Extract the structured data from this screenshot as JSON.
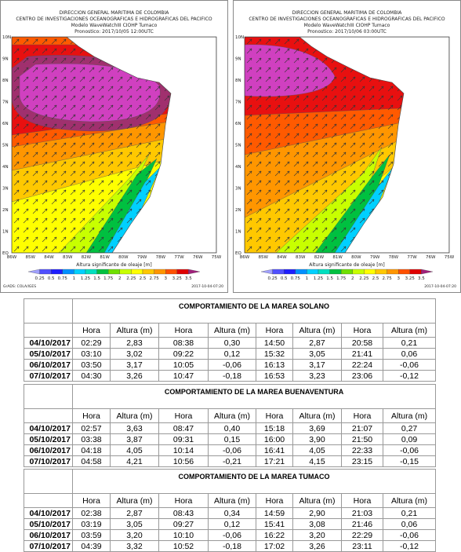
{
  "maps": [
    {
      "title_lines": [
        "DIRECCION GENERAL MARITIMA DE COLOMBIA",
        "CENTRO DE INVESTIGACIONES OCEANOGRAFICAS E HIDROGRAFICAS DEL PACIFICO",
        "Modelo WaveWatchIII CIOHP Tumaco",
        "Pronostico: 2017/10/05 12:00UTC"
      ],
      "footer_left": "GrADS: COLA/IGES",
      "footer_right": "2017-10-04-07:20"
    },
    {
      "title_lines": [
        "DIRECCION GENERAL MARITIMA DE COLOMBIA",
        "CENTRO DE INVESTIGACIONES OCEANOGRAFICAS E HIDROGRAFICAS DEL PACIFICO",
        "Modelo WaveWatchIII CIOHP Tumaco",
        "Pronostico: 2017/10/06 03:00UTC"
      ],
      "footer_right": "2017-10-04-07:20"
    }
  ],
  "map_axis": {
    "lat_labels": [
      "10N",
      "9N",
      "8N",
      "7N",
      "6N",
      "5N",
      "4N",
      "3N",
      "2N",
      "1N",
      "EQ"
    ],
    "lon_labels": [
      "86W",
      "85W",
      "84W",
      "83W",
      "82W",
      "81W",
      "80W",
      "79W",
      "78W",
      "77W",
      "76W",
      "75W"
    ]
  },
  "colorbar": {
    "title": "Altura significante de oleaje [m]",
    "labels": [
      "0.25",
      "0.5",
      "0.75",
      "1",
      "1.25",
      "1.5",
      "1.75",
      "2",
      "2.25",
      "2.5",
      "2.75",
      "3",
      "3.25",
      "3.5"
    ]
  },
  "tables": [
    {
      "title": "COMPORTAMIENTO DE LA MAREA SOLANO",
      "headers": [
        "Hora",
        "Altura (m)",
        "Hora",
        "Altura (m)",
        "Hora",
        "Altura (m)",
        "Hora",
        "Altura (m)"
      ],
      "rows": [
        [
          "04/10/2017",
          "02:29",
          "2,83",
          "08:38",
          "0,30",
          "14:50",
          "2,87",
          "20:58",
          "0,21"
        ],
        [
          "05/10/2017",
          "03:10",
          "3,02",
          "09:22",
          "0,12",
          "15:32",
          "3,05",
          "21:41",
          "0,06"
        ],
        [
          "06/10/2017",
          "03:50",
          "3,17",
          "10:05",
          "-0,06",
          "16:13",
          "3,17",
          "22:24",
          "-0,06"
        ],
        [
          "07/10/2017",
          "04:30",
          "3,26",
          "10:47",
          "-0,18",
          "16:53",
          "3,23",
          "23:06",
          "-0,12"
        ]
      ]
    },
    {
      "title": "COMPORTAMIENTO DE LA MAREA BUENAVENTURA",
      "headers": [
        "Hora",
        "Altura (m)",
        "Hora",
        "Altura (m)",
        "Hora",
        "Altura (m)",
        "Hora",
        "Altura (m)"
      ],
      "rows": [
        [
          "04/10/2017",
          "02:57",
          "3,63",
          "08:47",
          "0,40",
          "15:18",
          "3,69",
          "21:07",
          "0,27"
        ],
        [
          "05/10/2017",
          "03:38",
          "3,87",
          "09:31",
          "0,15",
          "16:00",
          "3,90",
          "21:50",
          "0,09"
        ],
        [
          "06/10/2017",
          "04:18",
          "4,05",
          "10:14",
          "-0,06",
          "16:41",
          "4,05",
          "22:33",
          "-0,06"
        ],
        [
          "07/10/2017",
          "04:58",
          "4,21",
          "10:56",
          "-0,21",
          "17:21",
          "4,15",
          "23:15",
          "-0,15"
        ]
      ]
    },
    {
      "title": "COMPORTAMIENTO DE LA MAREA TUMACO",
      "headers": [
        "Hora",
        "Altura (m)",
        "Hora",
        "Altura (m)",
        "Hora",
        "Altura (m)",
        "Hora",
        "Altura (m)"
      ],
      "rows": [
        [
          "04/10/2017",
          "02:38",
          "2,87",
          "08:43",
          "0,34",
          "14:59",
          "2,90",
          "21:03",
          "0,21"
        ],
        [
          "05/10/2017",
          "03:19",
          "3,05",
          "09:27",
          "0,12",
          "15:41",
          "3,08",
          "21:46",
          "0,06"
        ],
        [
          "06/10/2017",
          "03:59",
          "3,20",
          "10:10",
          "-0,06",
          "16:22",
          "3,20",
          "22:29",
          "-0,06"
        ],
        [
          "07/10/2017",
          "04:39",
          "3,32",
          "10:52",
          "-0,18",
          "17:02",
          "3,26",
          "23:11",
          "-0,12"
        ]
      ]
    }
  ]
}
